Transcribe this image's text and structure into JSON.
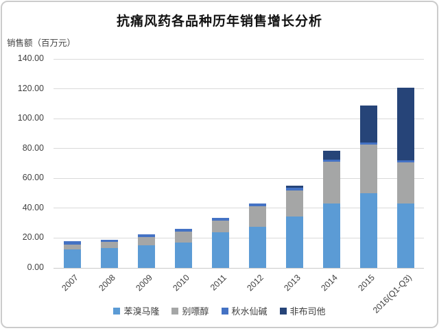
{
  "chart_data": {
    "type": "bar",
    "stacked": true,
    "title": "抗痛风药各品种历年销售增长分析",
    "unit_label": "销售额（百万元）",
    "categories": [
      "2007",
      "2008",
      "2009",
      "2010",
      "2011",
      "2012",
      "2013",
      "2014",
      "2015",
      "2016(Q1-Q3)"
    ],
    "series": [
      {
        "name": "苯溴马隆",
        "color": "#5B9BD5",
        "values": [
          12.5,
          13.3,
          15.2,
          17.2,
          24.0,
          27.5,
          34.5,
          43.0,
          50.0,
          43.0
        ]
      },
      {
        "name": "别嘌醇",
        "color": "#A5A6A6",
        "values": [
          3.2,
          4.1,
          5.5,
          7.0,
          7.5,
          14.0,
          17.5,
          28.0,
          32.5,
          27.5
        ]
      },
      {
        "name": "秋水仙碱",
        "color": "#4472C4",
        "values": [
          2.0,
          1.4,
          1.8,
          1.8,
          1.8,
          1.8,
          1.8,
          1.6,
          1.5,
          1.8
        ]
      },
      {
        "name": "非布司他",
        "color": "#264478",
        "values": [
          0,
          0,
          0,
          0,
          0,
          0,
          1.5,
          6.0,
          25.0,
          48.5
        ]
      }
    ],
    "totals": [
      17.7,
      18.8,
      22.5,
      26.0,
      33.3,
      43.3,
      55.3,
      78.6,
      109.0,
      120.8
    ],
    "ylim": [
      0,
      140
    ],
    "ytick_step": 20,
    "ytick_labels": [
      "0.00",
      "20.00",
      "40.00",
      "60.00",
      "80.00",
      "100.00",
      "120.00",
      "140.00"
    ],
    "grid": true,
    "legend_position": "bottom",
    "colors": {
      "grid": "#d9d9d9",
      "text": "#3f3f3f",
      "title": "#111111",
      "frame_border": "#cbcbcb"
    }
  }
}
